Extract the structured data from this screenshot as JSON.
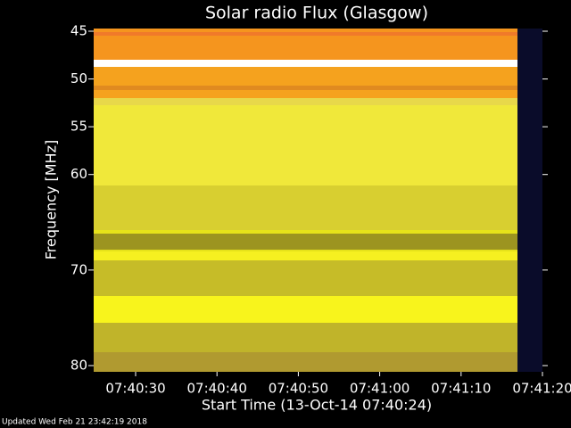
{
  "chart_data": {
    "type": "spectrogram",
    "title": "Solar radio Flux (Glasgow)",
    "y_label": "Frequency [MHz]",
    "x_label": "Start Time (13-Oct-14 07:40:24)",
    "ylim": [
      45,
      80
    ],
    "yticks": [
      45,
      50,
      55,
      60,
      70,
      80
    ],
    "xticks": [
      "07:40:30",
      "07:40:40",
      "07:40:50",
      "07:41:00",
      "07:41:10",
      "07:41:20"
    ],
    "footer": "Updated Wed Feb 21 23:42:19 2018"
  }
}
